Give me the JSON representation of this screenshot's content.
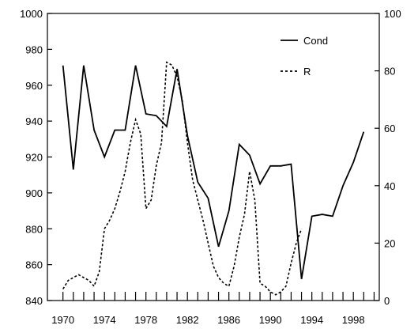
{
  "chart_data": {
    "type": "line",
    "title": "",
    "xlabel": "",
    "ylabel": "",
    "y2label": "",
    "xlim": [
      1968.5,
      2000.5
    ],
    "ylim": [
      840,
      1000
    ],
    "y2lim": [
      0,
      100
    ],
    "x_ticks": [
      1970,
      1974,
      1978,
      1982,
      1986,
      1990,
      1994,
      1998
    ],
    "y_ticks": [
      840,
      860,
      880,
      900,
      920,
      940,
      960,
      980,
      1000
    ],
    "y2_ticks": [
      0,
      20,
      40,
      60,
      80,
      100
    ],
    "grid": false,
    "legend": "top-right",
    "series": [
      {
        "name": "Cond",
        "axis": "left",
        "style": "solid",
        "x": [
          1970,
          1971,
          1972,
          1973,
          1974,
          1975,
          1976,
          1977,
          1978,
          1979,
          1980,
          1981,
          1982,
          1983,
          1984,
          1985,
          1986,
          1987,
          1988,
          1989,
          1990,
          1991,
          1992,
          1993,
          1994,
          1995,
          1996,
          1997,
          1998,
          1999
        ],
        "y": [
          971,
          913,
          971,
          935,
          920,
          935,
          935,
          971,
          944,
          943,
          937,
          969,
          932,
          906,
          897,
          870,
          890,
          927,
          921,
          905,
          915,
          915,
          916,
          852,
          887,
          888,
          887,
          904,
          917,
          934
        ]
      },
      {
        "name": "R",
        "axis": "right",
        "style": "dashed",
        "x": [
          1970,
          1970.5,
          1971,
          1971.5,
          1972,
          1972.5,
          1973,
          1973.5,
          1974,
          1974.5,
          1975,
          1975.5,
          1976,
          1976.5,
          1977,
          1977.5,
          1978,
          1978.5,
          1979,
          1979.5,
          1980,
          1980.5,
          1981,
          1981.5,
          1982,
          1982.5,
          1983,
          1983.5,
          1984,
          1984.5,
          1985,
          1985.5,
          1986,
          1986.5,
          1987,
          1987.5,
          1988,
          1988.5,
          1989,
          1989.5,
          1990,
          1990.5,
          1991,
          1991.5,
          1992,
          1992.5,
          1993
        ],
        "y": [
          4,
          7,
          8,
          9,
          8,
          7,
          5,
          10,
          25,
          28,
          32,
          38,
          45,
          55,
          63,
          58,
          32,
          35,
          47,
          55,
          83,
          82,
          78,
          70,
          55,
          42,
          35,
          28,
          20,
          12,
          8,
          6,
          5,
          12,
          22,
          30,
          45,
          35,
          6,
          5,
          3,
          2,
          3,
          5,
          13,
          20,
          25
        ]
      }
    ]
  }
}
